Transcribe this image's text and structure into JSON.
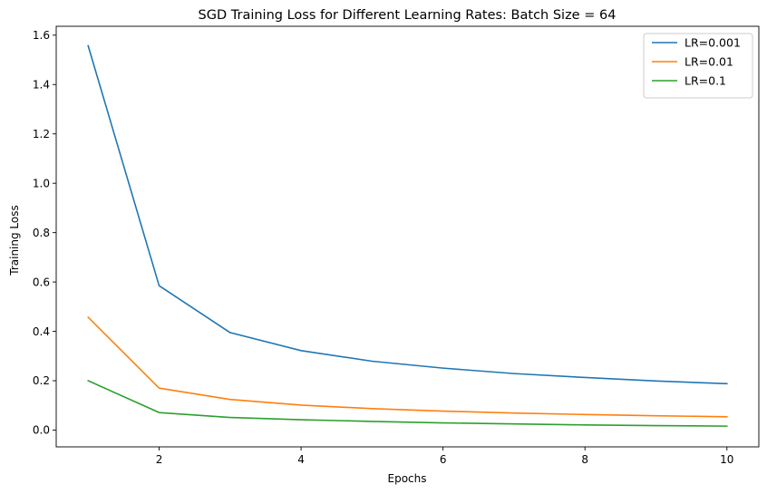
{
  "chart_data": {
    "type": "line",
    "title": "SGD Training Loss for Different Learning Rates: Batch Size = 64",
    "xlabel": "Epochs",
    "ylabel": "Training Loss",
    "x": [
      1,
      2,
      3,
      4,
      5,
      6,
      7,
      8,
      9,
      10
    ],
    "xlim": [
      0.55,
      10.45
    ],
    "ylim": [
      -0.068,
      1.636
    ],
    "xticks": [
      2,
      4,
      6,
      8,
      10
    ],
    "xtick_labels": [
      "2",
      "4",
      "6",
      "8",
      "10"
    ],
    "yticks": [
      0.0,
      0.2,
      0.4,
      0.6,
      0.8,
      1.0,
      1.2,
      1.4,
      1.6
    ],
    "ytick_labels": [
      "0.0",
      "0.2",
      "0.4",
      "0.6",
      "0.8",
      "1.0",
      "1.2",
      "1.4",
      "1.6"
    ],
    "grid": false,
    "legend_position": "top-right",
    "series": [
      {
        "name": "LR=0.001",
        "color": "#1f77b4",
        "values": [
          1.557,
          0.585,
          0.395,
          0.322,
          0.279,
          0.251,
          0.229,
          0.213,
          0.199,
          0.188
        ]
      },
      {
        "name": "LR=0.01",
        "color": "#ff7f0e",
        "values": [
          0.457,
          0.17,
          0.124,
          0.101,
          0.087,
          0.077,
          0.069,
          0.063,
          0.058,
          0.054
        ]
      },
      {
        "name": "LR=0.1",
        "color": "#2ca02c",
        "values": [
          0.2,
          0.071,
          0.051,
          0.042,
          0.035,
          0.029,
          0.025,
          0.021,
          0.018,
          0.016
        ]
      }
    ]
  }
}
